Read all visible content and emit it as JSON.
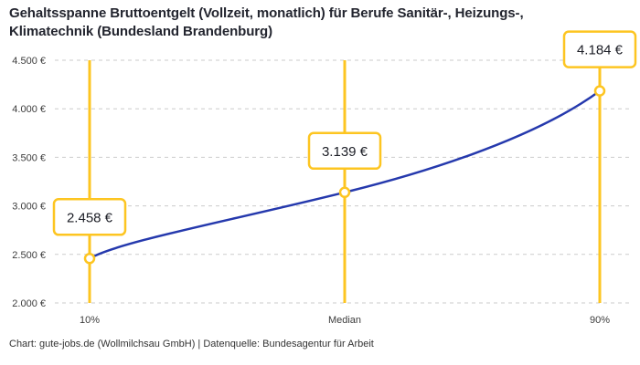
{
  "title": "Gehaltsspanne Bruttoentgelt (Vollzeit, monatlich) für Berufe Sanitär-, Heizungs-, Klimatechnik (Bundesland Brandenburg)",
  "footer": "Chart: gute-jobs.de (Wollmilchsau GmbH) | Datenquelle: Bundesagentur für Arbeit",
  "colors": {
    "accent_yellow": "#fdc521",
    "line_blue": "#2539ad",
    "grid_gray": "#cbcbcb",
    "axis_text": "#3c3c3c",
    "label_text": "#1c1e26",
    "background": "#ffffff"
  },
  "chart_data": {
    "type": "line",
    "title": "Gehaltsspanne Bruttoentgelt (Vollzeit, monatlich) für Berufe Sanitär-, Heizungs-, Klimatechnik (Bundesland Brandenburg)",
    "categories": [
      "10%",
      "Median",
      "90%"
    ],
    "values": [
      2458,
      3139,
      4184
    ],
    "value_labels": [
      "2.458 €",
      "3.139 €",
      "4.184 €"
    ],
    "ylim": [
      2000,
      4500
    ],
    "y_ticks": [
      {
        "value": 2000,
        "label": "2.000 €"
      },
      {
        "value": 2500,
        "label": "2.500 €"
      },
      {
        "value": 3000,
        "label": "3.000 €"
      },
      {
        "value": 3500,
        "label": "3.500 €"
      },
      {
        "value": 4000,
        "label": "4.000 €"
      },
      {
        "value": 4500,
        "label": "4.500 €"
      }
    ],
    "grid": "horizontal-dashed",
    "legend": "none",
    "marker_style": "open-circle",
    "annotation_style": "boxed value label above each point on vertical marker line"
  }
}
